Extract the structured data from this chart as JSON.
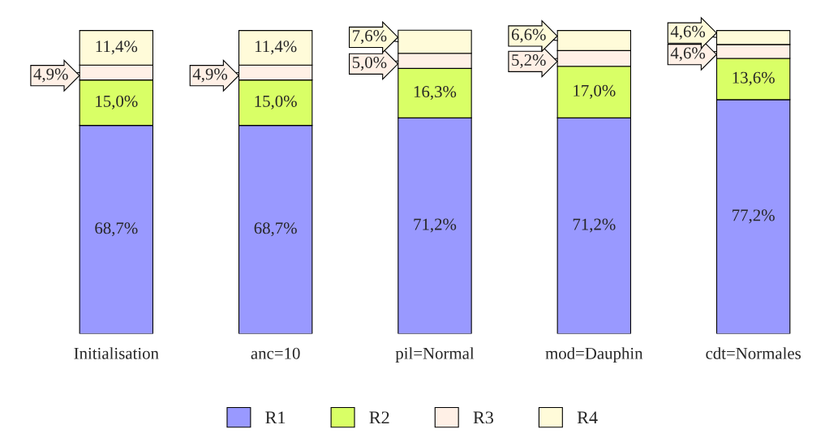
{
  "chart_data": {
    "type": "bar",
    "stacked": true,
    "legend": "bottom",
    "categories": [
      "Initialisation",
      "anc=10",
      "pil=Normal",
      "mod=Dauphin",
      "cdt=Normales"
    ],
    "series": [
      {
        "name": "R1",
        "color": "#9999ff",
        "values": [
          68.7,
          68.7,
          71.2,
          71.2,
          77.2
        ],
        "value_labels": [
          "68,7%",
          "68,7%",
          "71,2%",
          "71,2%",
          "77,2%"
        ]
      },
      {
        "name": "R2",
        "color": "#d9ff66",
        "values": [
          15.0,
          15.0,
          16.3,
          17.0,
          13.6
        ],
        "value_labels": [
          "15,0%",
          "15,0%",
          "16,3%",
          "17,0%",
          "13,6%"
        ]
      },
      {
        "name": "R3",
        "color": "#fff0e6",
        "values": [
          4.9,
          4.9,
          5.0,
          5.2,
          4.6
        ],
        "value_labels": [
          "4,9%",
          "4,9%",
          "5,0%",
          "5,2%",
          "4,6%"
        ]
      },
      {
        "name": "R4",
        "color": "#fffbd9",
        "values": [
          11.4,
          11.4,
          7.6,
          6.6,
          4.6
        ],
        "value_labels": [
          "11,4%",
          "11,4%",
          "7,6%",
          "6,6%",
          "4,6%"
        ]
      }
    ]
  }
}
